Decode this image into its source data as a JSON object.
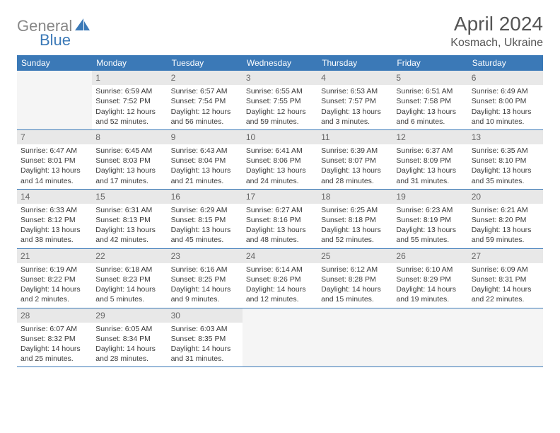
{
  "logo": {
    "gray": "General",
    "blue": "Blue",
    "icon_color": "#3b79b7"
  },
  "title": "April 2024",
  "location": "Kosmach, Ukraine",
  "weekdays": [
    "Sunday",
    "Monday",
    "Tuesday",
    "Wednesday",
    "Thursday",
    "Friday",
    "Saturday"
  ],
  "header_bg": "#3b79b7",
  "header_text": "#ffffff",
  "border_color": "#3b79b7",
  "daynum_bg": "#e8e8e8",
  "empty_bg": "#f5f5f5",
  "weeks": [
    [
      null,
      {
        "n": "1",
        "sr": "6:59 AM",
        "ss": "7:52 PM",
        "dh": "12",
        "dm": "52"
      },
      {
        "n": "2",
        "sr": "6:57 AM",
        "ss": "7:54 PM",
        "dh": "12",
        "dm": "56"
      },
      {
        "n": "3",
        "sr": "6:55 AM",
        "ss": "7:55 PM",
        "dh": "12",
        "dm": "59"
      },
      {
        "n": "4",
        "sr": "6:53 AM",
        "ss": "7:57 PM",
        "dh": "13",
        "dm": "3"
      },
      {
        "n": "5",
        "sr": "6:51 AM",
        "ss": "7:58 PM",
        "dh": "13",
        "dm": "6"
      },
      {
        "n": "6",
        "sr": "6:49 AM",
        "ss": "8:00 PM",
        "dh": "13",
        "dm": "10"
      }
    ],
    [
      {
        "n": "7",
        "sr": "6:47 AM",
        "ss": "8:01 PM",
        "dh": "13",
        "dm": "14"
      },
      {
        "n": "8",
        "sr": "6:45 AM",
        "ss": "8:03 PM",
        "dh": "13",
        "dm": "17"
      },
      {
        "n": "9",
        "sr": "6:43 AM",
        "ss": "8:04 PM",
        "dh": "13",
        "dm": "21"
      },
      {
        "n": "10",
        "sr": "6:41 AM",
        "ss": "8:06 PM",
        "dh": "13",
        "dm": "24"
      },
      {
        "n": "11",
        "sr": "6:39 AM",
        "ss": "8:07 PM",
        "dh": "13",
        "dm": "28"
      },
      {
        "n": "12",
        "sr": "6:37 AM",
        "ss": "8:09 PM",
        "dh": "13",
        "dm": "31"
      },
      {
        "n": "13",
        "sr": "6:35 AM",
        "ss": "8:10 PM",
        "dh": "13",
        "dm": "35"
      }
    ],
    [
      {
        "n": "14",
        "sr": "6:33 AM",
        "ss": "8:12 PM",
        "dh": "13",
        "dm": "38"
      },
      {
        "n": "15",
        "sr": "6:31 AM",
        "ss": "8:13 PM",
        "dh": "13",
        "dm": "42"
      },
      {
        "n": "16",
        "sr": "6:29 AM",
        "ss": "8:15 PM",
        "dh": "13",
        "dm": "45"
      },
      {
        "n": "17",
        "sr": "6:27 AM",
        "ss": "8:16 PM",
        "dh": "13",
        "dm": "48"
      },
      {
        "n": "18",
        "sr": "6:25 AM",
        "ss": "8:18 PM",
        "dh": "13",
        "dm": "52"
      },
      {
        "n": "19",
        "sr": "6:23 AM",
        "ss": "8:19 PM",
        "dh": "13",
        "dm": "55"
      },
      {
        "n": "20",
        "sr": "6:21 AM",
        "ss": "8:20 PM",
        "dh": "13",
        "dm": "59"
      }
    ],
    [
      {
        "n": "21",
        "sr": "6:19 AM",
        "ss": "8:22 PM",
        "dh": "14",
        "dm": "2"
      },
      {
        "n": "22",
        "sr": "6:18 AM",
        "ss": "8:23 PM",
        "dh": "14",
        "dm": "5"
      },
      {
        "n": "23",
        "sr": "6:16 AM",
        "ss": "8:25 PM",
        "dh": "14",
        "dm": "9"
      },
      {
        "n": "24",
        "sr": "6:14 AM",
        "ss": "8:26 PM",
        "dh": "14",
        "dm": "12"
      },
      {
        "n": "25",
        "sr": "6:12 AM",
        "ss": "8:28 PM",
        "dh": "14",
        "dm": "15"
      },
      {
        "n": "26",
        "sr": "6:10 AM",
        "ss": "8:29 PM",
        "dh": "14",
        "dm": "19"
      },
      {
        "n": "27",
        "sr": "6:09 AM",
        "ss": "8:31 PM",
        "dh": "14",
        "dm": "22"
      }
    ],
    [
      {
        "n": "28",
        "sr": "6:07 AM",
        "ss": "8:32 PM",
        "dh": "14",
        "dm": "25"
      },
      {
        "n": "29",
        "sr": "6:05 AM",
        "ss": "8:34 PM",
        "dh": "14",
        "dm": "28"
      },
      {
        "n": "30",
        "sr": "6:03 AM",
        "ss": "8:35 PM",
        "dh": "14",
        "dm": "31"
      },
      null,
      null,
      null,
      null
    ]
  ],
  "labels": {
    "sunrise": "Sunrise:",
    "sunset": "Sunset:",
    "daylight": "Daylight:",
    "hours": "hours",
    "and": "and",
    "minutes": "minutes."
  }
}
